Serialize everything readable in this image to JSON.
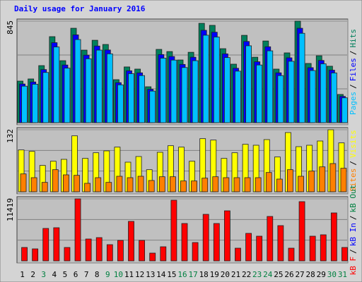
{
  "title": "Daily usage for January 2016",
  "separator": "/",
  "chart_data": [
    {
      "type": "bar",
      "ylim": [
        0,
        845
      ],
      "yticks": [
        845
      ],
      "grid_divisions": 3,
      "series": [
        {
          "name": "Pages",
          "color": "#00C0FF",
          "values": [
            304,
            320,
            418,
            630,
            454,
            692,
            532,
            604,
            573,
            315,
            408,
            392,
            263,
            537,
            521,
            459,
            516,
            728,
            713,
            542,
            429,
            640,
            480,
            598,
            392,
            511,
            744,
            434,
            490,
            414,
            207
          ]
        },
        {
          "name": "Files",
          "color": "#0000FF",
          "values": [
            322,
            339,
            442,
            666,
            480,
            731,
            562,
            638,
            605,
            333,
            432,
            415,
            278,
            567,
            551,
            485,
            545,
            769,
            753,
            573,
            453,
            676,
            507,
            632,
            415,
            540,
            786,
            458,
            518,
            437,
            219
          ]
        },
        {
          "name": "Hits",
          "color": "#00805C",
          "values": [
            346,
            364,
            475,
            716,
            516,
            786,
            604,
            686,
            651,
            358,
            464,
            446,
            299,
            610,
            592,
            522,
            586,
            827,
            810,
            616,
            487,
            727,
            545,
            680,
            446,
            581,
            845,
            493,
            557,
            470,
            235
          ]
        }
      ]
    },
    {
      "type": "bar",
      "ylim": [
        0,
        132
      ],
      "yticks": [
        132
      ],
      "grid_divisions": 3,
      "series": [
        {
          "name": "Sites",
          "color": "#FF8000",
          "values": [
            38,
            30,
            20,
            47,
            36,
            35,
            18,
            30,
            20,
            33,
            30,
            33,
            24,
            32,
            32,
            23,
            23,
            29,
            32,
            30,
            30,
            30,
            30,
            41,
            27,
            47,
            33,
            44,
            53,
            60,
            50
          ]
        },
        {
          "name": "Visits",
          "color": "#FFFF00",
          "values": [
            89,
            86,
            56,
            65,
            69,
            119,
            71,
            83,
            87,
            95,
            63,
            75,
            47,
            84,
            98,
            95,
            65,
            113,
            110,
            71,
            83,
            101,
            99,
            111,
            74,
            126,
            96,
            99,
            108,
            132,
            104
          ]
        }
      ]
    },
    {
      "type": "bar",
      "ylim": [
        0,
        11419
      ],
      "yticks": [
        11419
      ],
      "grid_divisions": 3,
      "categories": [
        "1",
        "2",
        "3",
        "4",
        "5",
        "6",
        "7",
        "8",
        "9",
        "10",
        "11",
        "12",
        "13",
        "14",
        "15",
        "16",
        "17",
        "18",
        "19",
        "20",
        "21",
        "22",
        "23",
        "24",
        "25",
        "26",
        "27",
        "28",
        "29",
        "30",
        "31"
      ],
      "label_colors": [
        "#000000",
        "#000000",
        "#008040",
        "#000000",
        "#000000",
        "#000000",
        "#000000",
        "#000000",
        "#008040",
        "#008040",
        "#000000",
        "#000000",
        "#000000",
        "#000000",
        "#000000",
        "#008040",
        "#008040",
        "#000000",
        "#000000",
        "#000000",
        "#000000",
        "#000000",
        "#008040",
        "#008040",
        "#000000",
        "#000000",
        "#000000",
        "#000000",
        "#000000",
        "#008040",
        "#008040"
      ],
      "series": [
        {
          "name": "kB F",
          "color": "#FF0000",
          "values": [
            2465,
            2206,
            5969,
            6099,
            2465,
            11419,
            4023,
            4282,
            2984,
            3763,
            7267,
            3763,
            1427,
            2595,
            11160,
            6877,
            3374,
            8564,
            6877,
            9213,
            2336,
            5061,
            4542,
            8175,
            6488,
            2336,
            10900,
            4542,
            4801,
            8824,
            2465
          ]
        },
        {
          "name": "kB In",
          "color": "#0000FF"
        },
        {
          "name": "kB Out",
          "color": "#008040"
        }
      ]
    }
  ]
}
